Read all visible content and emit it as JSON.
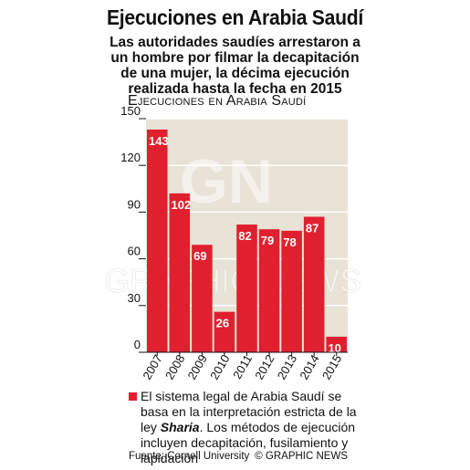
{
  "title": "Ejecuciones en Arabia Saudí",
  "subtitle": "Las autoridades saudíes arrestaron a un hombre por filmar la decapitación de una mujer, la décima ejecución realizada hasta la fecha en 2015",
  "chart_heading": "Ejecuciones en Arabia Saudí",
  "watermark": "GRAPHIC NEWS",
  "colors": {
    "bar": "#e0202e",
    "panel": "#e9e2d6",
    "gridline": "#ffffff"
  },
  "chart_data": {
    "type": "bar",
    "title": "Ejecuciones en Arabia Saudí",
    "categories": [
      "2007",
      "2008",
      "2009",
      "2010",
      "2011",
      "2012",
      "2013",
      "2014",
      "2015"
    ],
    "values": [
      143,
      102,
      69,
      26,
      82,
      79,
      78,
      87,
      10
    ],
    "value_labels": [
      "143",
      "102",
      "69",
      "26",
      "82",
      "79",
      "78",
      "87",
      "10"
    ],
    "ylim": [
      0,
      150
    ],
    "yticks": [
      "0",
      "30",
      "60",
      "90",
      "120",
      "150"
    ],
    "grid": true,
    "xlabel": "",
    "ylabel": ""
  },
  "note": {
    "before": "El sistema legal de Arabia Saudí se basa en la interpretación estricta de la ley ",
    "emphasis": "Sharia",
    "after": ". Los métodos de ejecución incluyen decapitación, fusilamiento y lapidación"
  },
  "footer": {
    "source": "Fuente: Cornell University",
    "copyright": "© GRAPHIC NEWS"
  }
}
